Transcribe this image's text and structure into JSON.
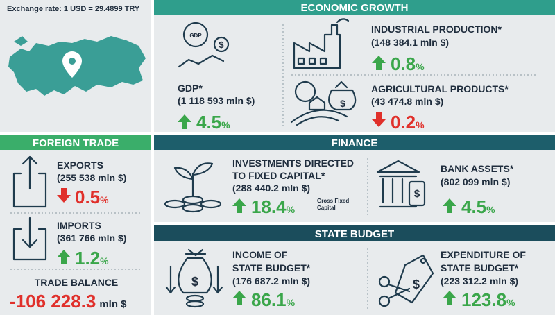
{
  "exchange_rate": "Exchange rate: 1 USD = 29.4899 TRY",
  "icons": {
    "currency_symbol": "$",
    "gdp_badge": "GDP"
  },
  "economic_growth": {
    "title": "ECONOMIC GROWTH",
    "gdp": {
      "label": "GDP*",
      "amount": "(1 118 593 mln $)",
      "change": "4.5",
      "unit": "%"
    },
    "industrial_production": {
      "label": "INDUSTRIAL PRODUCTION*",
      "amount": "(148 384.1 mln $)",
      "change": "0.8",
      "unit": "%"
    },
    "agricultural_products": {
      "label": "AGRICULTURAL PRODUCTS*",
      "amount": "(43 474.8 mln $)",
      "change": "0.2",
      "unit": "%"
    }
  },
  "foreign_trade": {
    "title": "FOREIGN TRADE",
    "exports": {
      "label": "EXPORTS",
      "amount": "(255 538 mln $)",
      "change": "0.5",
      "unit": "%"
    },
    "imports": {
      "label": "IMPORTS",
      "amount": "(361 766 mln $)",
      "change": "1.2",
      "unit": "%"
    },
    "trade_balance": {
      "label": "TRADE BALANCE",
      "value": "-106 228.3",
      "unit": "mln $"
    }
  },
  "finance": {
    "title": "FINANCE",
    "investments": {
      "label_lines": [
        "INVESTMENTS DIRECTED",
        "TO FIXED CAPITAL*"
      ],
      "amount": "(288 440.2 mln $)",
      "change": "18.4",
      "unit": "%",
      "note_lines": [
        "Gross Fixed",
        "Capital"
      ]
    },
    "bank_assets": {
      "label": "BANK ASSETS*",
      "amount": "(802 099 mln $)",
      "change": "4.5",
      "unit": "%"
    }
  },
  "state_budget": {
    "title": "STATE BUDGET",
    "income": {
      "label_lines": [
        "INCOME OF",
        "STATE BUDGET*"
      ],
      "amount": "(176 687.2 mln $)",
      "change": "86.1",
      "unit": "%"
    },
    "expenditure": {
      "label_lines": [
        "EXPENDITURE OF",
        "STATE BUDGET*"
      ],
      "amount": "(223 312.2 mln $)",
      "change": "123.8",
      "unit": "%"
    }
  }
}
